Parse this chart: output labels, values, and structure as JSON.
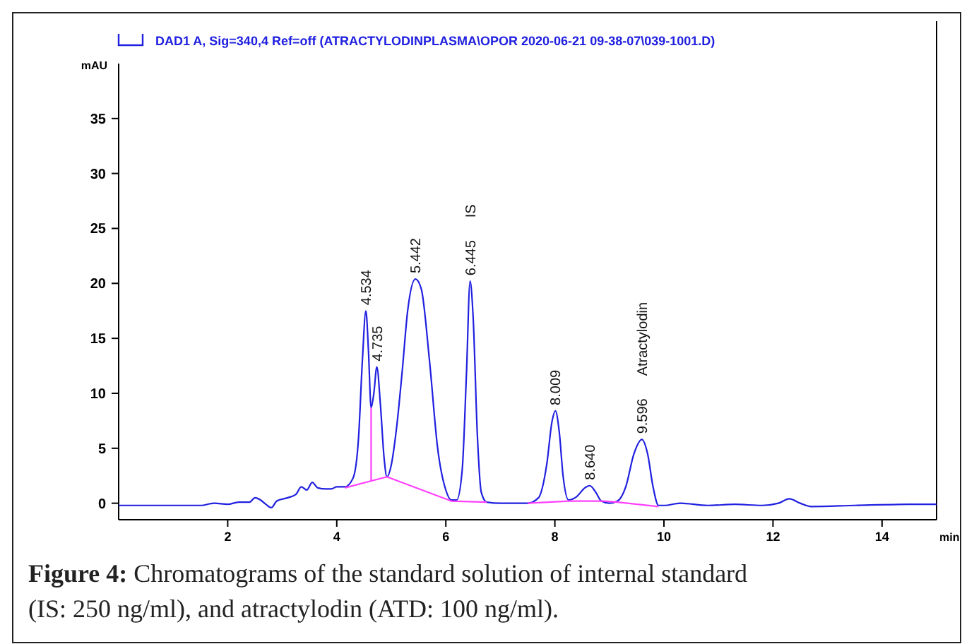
{
  "chart_data": {
    "type": "line",
    "xlabel": "min",
    "ylabel": "mAU",
    "xlim": [
      0,
      15
    ],
    "ylim": [
      -1.5,
      40
    ],
    "xticks": [
      2,
      4,
      6,
      8,
      10,
      12,
      14
    ],
    "yticks": [
      0,
      5,
      10,
      15,
      20,
      25,
      30,
      35
    ],
    "grid": false,
    "legend": "top left",
    "series": [
      {
        "name": "DAD1 A, Sig=340,4 Ref=off (ATRACTYLODINPLASMA\\OPOR 2020-06-21 09-38-07\\039-1001.D)",
        "color": "#2020e0",
        "x": [
          0,
          1,
          1.5,
          1.75,
          2,
          2.2,
          2.4,
          2.5,
          2.6,
          2.7,
          2.8,
          2.9,
          3.1,
          3.25,
          3.35,
          3.45,
          3.55,
          3.65,
          3.8,
          3.9,
          4.0,
          4.15,
          4.3,
          4.4,
          4.47,
          4.534,
          4.58,
          4.63,
          4.68,
          4.735,
          4.8,
          4.87,
          4.92,
          5.0,
          5.1,
          5.2,
          5.3,
          5.442,
          5.55,
          5.7,
          5.85,
          6.0,
          6.1,
          6.2,
          6.3,
          6.38,
          6.445,
          6.5,
          6.58,
          6.65,
          6.75,
          7.0,
          7.5,
          7.7,
          7.85,
          7.95,
          8.009,
          8.08,
          8.15,
          8.25,
          8.4,
          8.55,
          8.64,
          8.75,
          8.85,
          9.0,
          9.15,
          9.3,
          9.45,
          9.596,
          9.7,
          9.8,
          9.9,
          10.0,
          10.3,
          10.8,
          11.3,
          11.8,
          12.1,
          12.3,
          12.5,
          12.7,
          13.5,
          14.5,
          15
        ],
        "values": [
          -0.2,
          -0.2,
          -0.2,
          0,
          -0.1,
          0.1,
          0.1,
          0.5,
          0.3,
          -0.1,
          -0.4,
          0.2,
          0.5,
          0.8,
          1.5,
          1.2,
          1.9,
          1.4,
          1.3,
          1.3,
          1.5,
          1.5,
          2.3,
          6,
          13,
          17.5,
          14,
          8.7,
          10,
          12.4,
          9,
          4,
          2.4,
          3.5,
          7,
          12,
          17.5,
          20.4,
          19.5,
          13,
          5,
          1.2,
          0.3,
          0.3,
          3,
          12,
          20.2,
          17,
          6,
          1,
          0.1,
          0,
          0,
          0.5,
          3.5,
          7.5,
          8.4,
          6.5,
          2.5,
          0.3,
          0.6,
          1.4,
          1.6,
          1,
          0.2,
          0,
          0.2,
          1.5,
          4.5,
          5.8,
          4.5,
          1.5,
          -0.2,
          -0.2,
          0,
          -0.2,
          -0.1,
          -0.2,
          0,
          0.4,
          0,
          -0.3,
          -0.2,
          -0.1,
          -0.1
        ]
      },
      {
        "color": "#ff40ff",
        "x": [
          4.15,
          4.92,
          6.1,
          6.75
        ],
        "values": [
          1.4,
          2.4,
          0.2,
          0.1
        ]
      },
      {
        "color": "#ff40ff",
        "x": [
          7.5,
          8.25,
          8.9,
          9.15,
          9.9
        ],
        "values": [
          0,
          0.2,
          0.2,
          0.1,
          -0.3
        ]
      },
      {
        "color": "#ff40ff",
        "x": [
          4.63,
          4.63
        ],
        "values": [
          2.0,
          8.7
        ]
      }
    ],
    "annotations": [
      {
        "text": "4.534",
        "x": 4.534,
        "y": 17.5
      },
      {
        "text": "4.735",
        "x": 4.735,
        "y": 12.4
      },
      {
        "text": "5.442",
        "x": 5.442,
        "y": 20.4
      },
      {
        "text": "6.445",
        "x": 6.445,
        "y": 20.2
      },
      "IS",
      {
        "text": "8.009",
        "x": 8.009,
        "y": 8.4
      },
      {
        "text": "8.640",
        "x": 8.64,
        "y": 1.6
      },
      {
        "text": "9.596",
        "x": 9.596,
        "y": 5.8
      },
      "Atractylodin",
      "Figure 4: Chromatograms of the standard solution of internal standard (IS: 250 ng/ml), and atractylodin (ATD: 100 ng/ml)."
    ]
  }
}
